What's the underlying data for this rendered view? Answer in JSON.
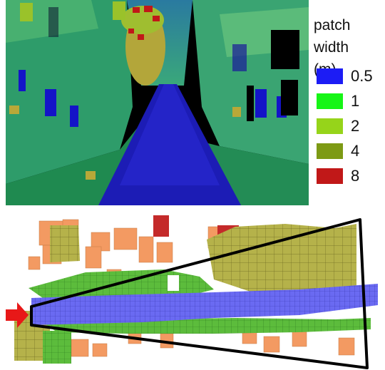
{
  "legend": {
    "title_line1": "patch width",
    "title_line2": "(m)",
    "items": [
      {
        "label": "0.5",
        "color": "#1c1cf5"
      },
      {
        "label": "1",
        "color": "#16f516"
      },
      {
        "label": "2",
        "color": "#96d41a"
      },
      {
        "label": "4",
        "color": "#7d9a14"
      },
      {
        "label": "8",
        "color": "#c11818"
      }
    ]
  },
  "bottom_colors": {
    "orange": "#f39a62",
    "olive": "#b5b24a",
    "green": "#5cbc3c",
    "blue": "#6a6af2",
    "red": "#c42a2a",
    "arrow": "#e81818"
  }
}
